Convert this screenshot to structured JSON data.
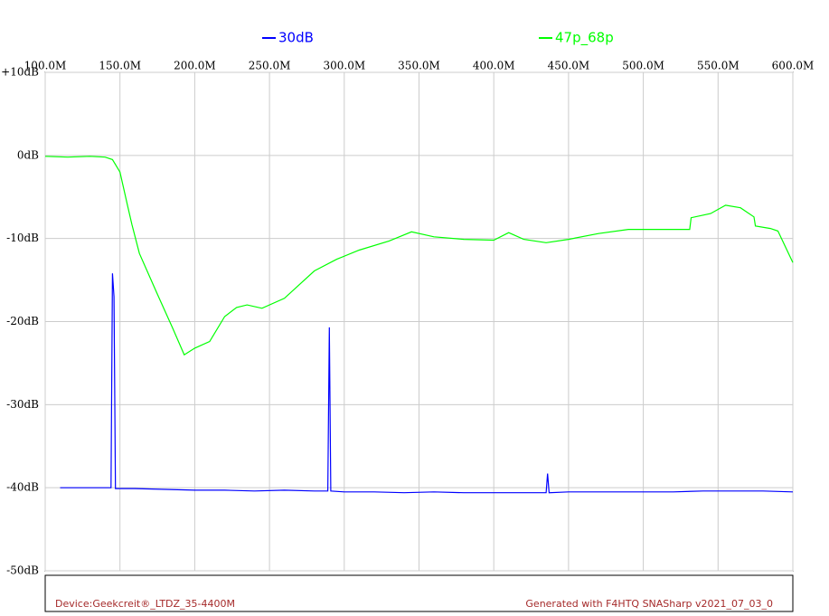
{
  "chart_data": {
    "type": "line",
    "series": [
      {
        "name": "30dB",
        "color": "#0000ff",
        "x": [
          110,
          120,
          130,
          140,
          144,
          145,
          146,
          147,
          160,
          180,
          200,
          220,
          240,
          260,
          280,
          289,
          290,
          291,
          300,
          320,
          340,
          360,
          380,
          400,
          420,
          435,
          436,
          437,
          450,
          470,
          500,
          520,
          540,
          560,
          580,
          600
        ],
        "values": [
          -40,
          -40,
          -40,
          -40,
          -40,
          -14.2,
          -17,
          -40.1,
          -40.1,
          -40.2,
          -40.3,
          -40.3,
          -40.4,
          -40.3,
          -40.4,
          -40.4,
          -20.7,
          -40.4,
          -40.5,
          -40.5,
          -40.6,
          -40.5,
          -40.6,
          -40.6,
          -40.6,
          -40.6,
          -38.3,
          -40.6,
          -40.5,
          -40.5,
          -40.5,
          -40.5,
          -40.4,
          -40.4,
          -40.4,
          -40.5
        ]
      },
      {
        "name": "47p_68p",
        "color": "#00ff00",
        "x": [
          100,
          115,
          130,
          140,
          145,
          150,
          155,
          158,
          163,
          175,
          185,
          193,
          200,
          210,
          220,
          228,
          235,
          245,
          260,
          280,
          295,
          310,
          330,
          345,
          360,
          380,
          400,
          410,
          420,
          435,
          450,
          470,
          490,
          520,
          531,
          532,
          545,
          555,
          565,
          574,
          575,
          585,
          590,
          600
        ],
        "values": [
          -0.1,
          -0.2,
          -0.1,
          -0.2,
          -0.5,
          -2,
          -6,
          -8.3,
          -11.8,
          -16.7,
          -20.7,
          -24,
          -23.2,
          -22.4,
          -19.4,
          -18.3,
          -18,
          -18.4,
          -17.2,
          -13.9,
          -12.5,
          -11.4,
          -10.3,
          -9.2,
          -9.8,
          -10.1,
          -10.2,
          -9.3,
          -10.1,
          -10.5,
          -10.1,
          -9.4,
          -8.9,
          -8.9,
          -8.9,
          -7.5,
          -7,
          -6,
          -6.3,
          -7.4,
          -8.5,
          -8.8,
          -9.1,
          -12.9
        ]
      }
    ],
    "xlim": [
      100,
      600
    ],
    "xticks": [
      {
        "value": 100,
        "label": "100.0M"
      },
      {
        "value": 150,
        "label": "150.0M"
      },
      {
        "value": 200,
        "label": "200.0M"
      },
      {
        "value": 250,
        "label": "250.0M"
      },
      {
        "value": 300,
        "label": "300.0M"
      },
      {
        "value": 350,
        "label": "350.0M"
      },
      {
        "value": 400,
        "label": "400.0M"
      },
      {
        "value": 450,
        "label": "450.0M"
      },
      {
        "value": 500,
        "label": "500.0M"
      },
      {
        "value": 550,
        "label": "550.0M"
      },
      {
        "value": 600,
        "label": "600.0M"
      }
    ],
    "ylim": [
      -50,
      10
    ],
    "yticks": [
      {
        "value": 10,
        "label": "+10dB"
      },
      {
        "value": 0,
        "label": "0dB"
      },
      {
        "value": -10,
        "label": "-10dB"
      },
      {
        "value": -20,
        "label": "-20dB"
      },
      {
        "value": -30,
        "label": "-30dB"
      },
      {
        "value": -40,
        "label": "-40dB"
      },
      {
        "value": -50,
        "label": "-50dB"
      }
    ],
    "grid": true,
    "annotations": [
      "Device:Geekcreit®_LTDZ_35-4400M",
      "Generated with F4HTQ SNASharp v2021_07_03_0"
    ]
  }
}
